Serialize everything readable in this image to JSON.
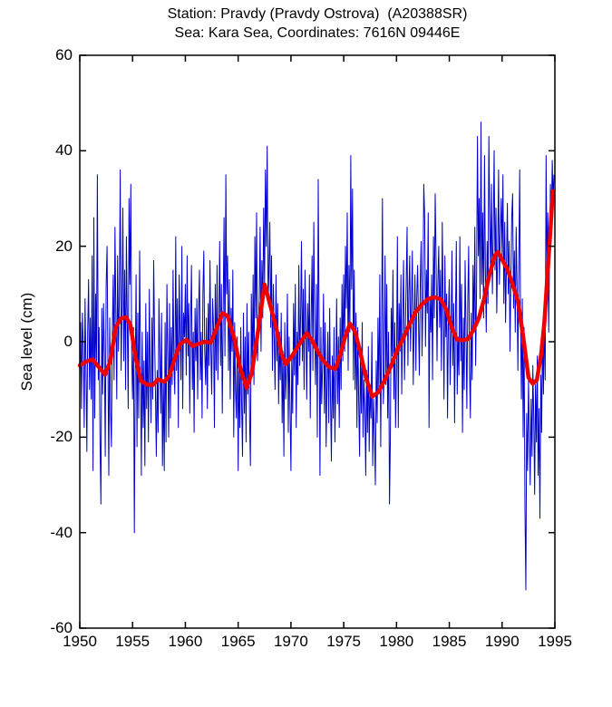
{
  "header": {
    "title_line1": "Station: Pravdy (Pravdy Ostrova)  (A20388SR)",
    "title_line2": "Sea: Kara Sea, Coordinates: 7616N 09446E"
  },
  "chart_data": {
    "type": "line",
    "title": "Station: Pravdy (Pravdy Ostrova)  (A20388SR)",
    "subtitle": "Sea: Kara Sea, Coordinates: 7616N 09446E",
    "xlabel": "",
    "ylabel": "Sea level (cm)",
    "xlim": [
      1950,
      1995
    ],
    "ylim": [
      -60,
      60
    ],
    "x_ticks": [
      1950,
      1955,
      1960,
      1965,
      1970,
      1975,
      1980,
      1985,
      1990,
      1995
    ],
    "y_ticks": [
      -60,
      -40,
      -20,
      0,
      20,
      40,
      60
    ],
    "grid": false,
    "legend_position": "none",
    "colors": {
      "monthly": "#0000CC",
      "smoothed": "#EE0000",
      "axis": "#000000",
      "background": "#FFFFFF"
    },
    "series": [
      {
        "name": "monthly-sea-level",
        "color_key": "monthly",
        "line_width": 1,
        "x_start": 1950.0,
        "x_step_years": 0.08333,
        "values": [
          -8,
          4,
          -14,
          6,
          -1,
          -18,
          9,
          -5,
          -23,
          2,
          13,
          -10,
          5,
          -12,
          18,
          -27,
          26,
          -16,
          10,
          -4,
          35,
          -8,
          3,
          -20,
          -34,
          7,
          -11,
          8,
          -3,
          -24,
          12,
          20,
          -6,
          -28,
          5,
          -15,
          -22,
          2,
          14,
          -8,
          24,
          6,
          -12,
          18,
          -2,
          10,
          36,
          -6,
          8,
          28,
          -4,
          15,
          -10,
          22,
          4,
          -14,
          30,
          12,
          33,
          -2,
          -12,
          3,
          -40,
          -8,
          14,
          -22,
          6,
          -16,
          19,
          -5,
          -28,
          2,
          -18,
          -4,
          -26,
          8,
          -14,
          2,
          -21,
          11,
          -7,
          -17,
          5,
          -12,
          17,
          1,
          -10,
          -24,
          -6,
          -19,
          9,
          -3,
          -15,
          6,
          -26,
          -8,
          -27,
          4,
          -21,
          12,
          -2,
          -20,
          8,
          -16,
          3,
          -9,
          15,
          -5,
          -11,
          22,
          -6,
          9,
          -18,
          14,
          2,
          -8,
          20,
          -14,
          6,
          1,
          12,
          -7,
          18,
          -3,
          8,
          -15,
          4,
          16,
          -10,
          2,
          -19,
          7,
          -4,
          9,
          -12,
          6,
          15,
          -8,
          2,
          -16,
          10,
          19,
          -2,
          -9,
          5,
          -14,
          8,
          -5,
          17,
          -2,
          -11,
          9,
          3,
          -18,
          12,
          -6,
          16,
          -8,
          4,
          21,
          -5,
          12,
          -15,
          7,
          26,
          -3,
          35,
          10,
          18,
          -6,
          13,
          -12,
          7,
          -2,
          15,
          -20,
          4,
          -10,
          -16,
          1,
          -27,
          -5,
          -18,
          3,
          -13,
          -24,
          6,
          -15,
          1,
          -21,
          8,
          -11,
          2,
          -16,
          -26,
          10,
          -6,
          14,
          -9,
          22,
          5,
          27,
          -4,
          3,
          9,
          24,
          -2,
          17,
          5,
          28,
          12,
          36,
          20,
          41,
          8,
          15,
          25,
          3,
          18,
          -6,
          12,
          1,
          -10,
          14,
          -4,
          8,
          -13,
          2,
          -8,
          6,
          -17,
          -2,
          -24,
          4,
          -12,
          -6,
          10,
          -19,
          1,
          -14,
          -27,
          -3,
          -15,
          8,
          -7,
          12,
          -18,
          2,
          -9,
          16,
          -5,
          6,
          21,
          -4,
          11,
          -10,
          15,
          3,
          -12,
          8,
          -2,
          14,
          -16,
          5,
          18,
          -6,
          25,
          2,
          -9,
          12,
          -20,
          34,
          6,
          -28,
          3,
          -13,
          -5,
          10,
          -15,
          4,
          -22,
          -8,
          2,
          -17,
          7,
          -11,
          -25,
          -3,
          -16,
          3,
          -21,
          -7,
          9,
          -13,
          1,
          -18,
          5,
          -10,
          12,
          -4,
          14,
          -2,
          20,
          7,
          27,
          -6,
          16,
          2,
          39,
          11,
          32,
          -8,
          15,
          -10,
          6,
          -18,
          3,
          -12,
          -24,
          -2,
          -15,
          4,
          -20,
          -8,
          -14,
          -28,
          -6,
          -19,
          -1,
          -23,
          -9,
          -16,
          2,
          -26,
          -12,
          -20,
          -30,
          -4,
          -17,
          5,
          -11,
          14,
          -22,
          1,
          30,
          -13,
          -7,
          18,
          -9,
          12,
          -16,
          2,
          -34,
          -21,
          7,
          -3,
          15,
          -12,
          4,
          -18,
          -6,
          22,
          -18,
          8,
          -2,
          14,
          -11,
          5,
          17,
          -8,
          2,
          12,
          24,
          -5,
          10,
          18,
          -2,
          8,
          19,
          -9,
          3,
          14,
          -6,
          9,
          16,
          4,
          -7,
          12,
          21,
          -3,
          8,
          33,
          26,
          -1,
          15,
          6,
          27,
          -18,
          9,
          2,
          14,
          -8,
          22,
          5,
          31,
          17,
          -4,
          12,
          20,
          3,
          15,
          -6,
          25,
          8,
          -12,
          18,
          1,
          10,
          -16,
          6,
          13,
          -9,
          2,
          19,
          -5,
          8,
          -17,
          4,
          21,
          -11,
          1,
          -7,
          22,
          -4,
          12,
          -19,
          5,
          -10,
          17,
          2,
          -14,
          8,
          20,
          -6,
          -16,
          6,
          -8,
          16,
          2,
          24,
          -5,
          11,
          43,
          18,
          30,
          9,
          46,
          12,
          27,
          5,
          39,
          16,
          2,
          21,
          8,
          43,
          25,
          14,
          33,
          10,
          24,
          40,
          15,
          28,
          6,
          19,
          36,
          12,
          22,
          30,
          18,
          35,
          8,
          25,
          4,
          16,
          29,
          10,
          21,
          -2,
          13,
          26,
          31,
          7,
          19,
          2,
          24,
          11,
          -6,
          15,
          36,
          5,
          -12,
          9,
          -20,
          3,
          -35,
          -52,
          -15,
          -27,
          -8,
          -18,
          -30,
          -12,
          -24,
          -5,
          -16,
          -32,
          -9,
          -21,
          -3,
          -28,
          -14,
          -37,
          -7,
          -19,
          2,
          -11,
          6,
          -8,
          39,
          15,
          27,
          2,
          20,
          33,
          24,
          38,
          30,
          35
        ]
      },
      {
        "name": "smoothed-sea-level",
        "color_key": "smoothed",
        "line_width": 4.5,
        "points": [
          [
            1950.0,
            -5.0
          ],
          [
            1950.4,
            -4.4
          ],
          [
            1950.8,
            -4.0
          ],
          [
            1951.2,
            -3.7
          ],
          [
            1951.8,
            -5.3
          ],
          [
            1952.4,
            -6.9
          ],
          [
            1952.9,
            -4.0
          ],
          [
            1953.4,
            3.0
          ],
          [
            1953.9,
            4.9
          ],
          [
            1954.4,
            5.1
          ],
          [
            1954.8,
            3.5
          ],
          [
            1955.3,
            -3.5
          ],
          [
            1955.8,
            -8.2
          ],
          [
            1956.4,
            -9.0
          ],
          [
            1956.9,
            -9.1
          ],
          [
            1957.4,
            -7.9
          ],
          [
            1958.0,
            -8.4
          ],
          [
            1958.5,
            -7.0
          ],
          [
            1959.0,
            -3.5
          ],
          [
            1959.5,
            -0.5
          ],
          [
            1960.1,
            0.4
          ],
          [
            1960.7,
            -0.9
          ],
          [
            1961.3,
            -0.4
          ],
          [
            1961.8,
            0.0
          ],
          [
            1962.4,
            -0.2
          ],
          [
            1962.9,
            2.5
          ],
          [
            1963.5,
            6.0
          ],
          [
            1964.0,
            5.4
          ],
          [
            1964.6,
            1.0
          ],
          [
            1965.2,
            -5.5
          ],
          [
            1965.8,
            -9.7
          ],
          [
            1966.3,
            -6.5
          ],
          [
            1966.9,
            2.5
          ],
          [
            1967.5,
            12.0
          ],
          [
            1968.0,
            8.0
          ],
          [
            1968.6,
            3.0
          ],
          [
            1969.1,
            -2.5
          ],
          [
            1969.5,
            -4.7
          ],
          [
            1970.1,
            -3.0
          ],
          [
            1970.6,
            -1.2
          ],
          [
            1971.1,
            0.5
          ],
          [
            1971.5,
            1.8
          ],
          [
            1972.0,
            0.3
          ],
          [
            1972.5,
            -1.9
          ],
          [
            1973.0,
            -3.8
          ],
          [
            1973.6,
            -5.3
          ],
          [
            1974.2,
            -5.7
          ],
          [
            1974.7,
            -2.5
          ],
          [
            1975.2,
            1.5
          ],
          [
            1975.6,
            3.8
          ],
          [
            1976.1,
            2.0
          ],
          [
            1976.6,
            -2.5
          ],
          [
            1977.1,
            -7.5
          ],
          [
            1977.7,
            -11.5
          ],
          [
            1978.3,
            -10.5
          ],
          [
            1978.9,
            -8.0
          ],
          [
            1979.5,
            -5.0
          ],
          [
            1980.1,
            -1.5
          ],
          [
            1980.6,
            0.5
          ],
          [
            1981.2,
            3.5
          ],
          [
            1981.8,
            6.2
          ],
          [
            1982.4,
            7.8
          ],
          [
            1983.0,
            9.0
          ],
          [
            1983.6,
            9.3
          ],
          [
            1984.2,
            8.9
          ],
          [
            1984.7,
            6.8
          ],
          [
            1985.2,
            3.2
          ],
          [
            1985.7,
            0.5
          ],
          [
            1986.2,
            0.3
          ],
          [
            1986.8,
            0.6
          ],
          [
            1987.3,
            2.5
          ],
          [
            1987.8,
            5.0
          ],
          [
            1988.3,
            9.0
          ],
          [
            1988.8,
            14.0
          ],
          [
            1989.3,
            18.0
          ],
          [
            1989.6,
            18.8
          ],
          [
            1990.0,
            17.2
          ],
          [
            1990.5,
            15.2
          ],
          [
            1991.0,
            12.0
          ],
          [
            1991.5,
            8.5
          ],
          [
            1992.0,
            1.0
          ],
          [
            1992.5,
            -7.5
          ],
          [
            1992.9,
            -8.8
          ],
          [
            1993.3,
            -8.0
          ],
          [
            1993.7,
            -2.5
          ],
          [
            1994.0,
            4.0
          ],
          [
            1994.3,
            14.0
          ],
          [
            1994.6,
            24.0
          ],
          [
            1994.8,
            31.5
          ]
        ]
      }
    ]
  }
}
